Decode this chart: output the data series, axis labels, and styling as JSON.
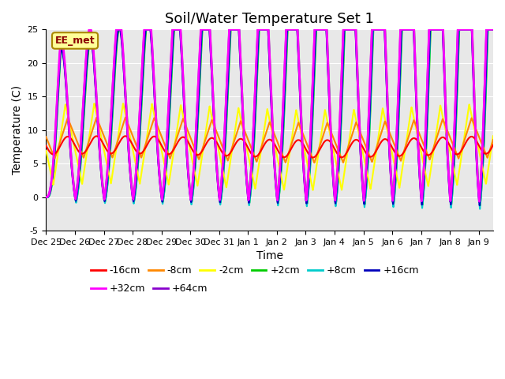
{
  "title": "Soil/Water Temperature Set 1",
  "xlabel": "Time",
  "ylabel": "Temperature (C)",
  "ylim": [
    -5,
    25
  ],
  "xlim_days": 15.5,
  "x_tick_labels": [
    "Dec 25",
    "Dec 26",
    "Dec 27",
    "Dec 28",
    "Dec 29",
    "Dec 30",
    "Dec 31",
    "Jan 1",
    "Jan 2",
    "Jan 3",
    "Jan 4",
    "Jan 5",
    "Jan 6",
    "Jan 7",
    "Jan 8",
    "Jan 9"
  ],
  "series": [
    {
      "label": "-16cm",
      "color": "#ff0000"
    },
    {
      "label": "-8cm",
      "color": "#ff8800"
    },
    {
      "label": "-2cm",
      "color": "#ffff00"
    },
    {
      "label": "+2cm",
      "color": "#00cc00"
    },
    {
      "label": "+8cm",
      "color": "#00cccc"
    },
    {
      "label": "+16cm",
      "color": "#0000bb"
    },
    {
      "label": "+32cm",
      "color": "#ff00ff"
    },
    {
      "label": "+64cm",
      "color": "#8800cc"
    }
  ],
  "watermark_text": "EE_met",
  "watermark_bg": "#ffff99",
  "watermark_border": "#aa8800",
  "background_color": "#e8e8e8",
  "title_fontsize": 13,
  "label_fontsize": 10,
  "tick_fontsize": 8,
  "legend_fontsize": 9
}
